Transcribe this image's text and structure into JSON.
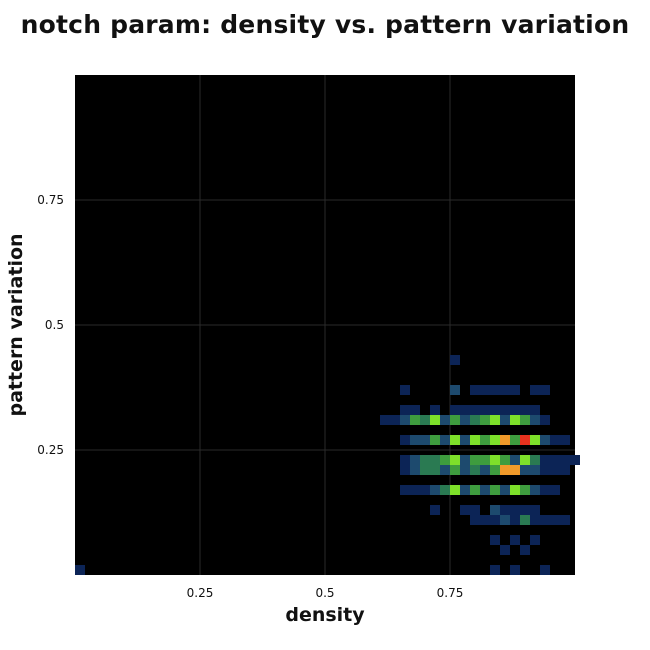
{
  "chart_data": {
    "type": "heatmap",
    "title": "notch param: density vs. pattern variation",
    "xlabel": "density",
    "ylabel": "pattern variation",
    "xlim": [
      0,
      1
    ],
    "ylim": [
      0,
      1
    ],
    "xticks": [
      {
        "value": 0.25,
        "label": "0.25"
      },
      {
        "value": 0.5,
        "label": "0.5"
      },
      {
        "value": 0.75,
        "label": "0.75"
      }
    ],
    "yticks": [
      {
        "value": 0.25,
        "label": "0.25"
      },
      {
        "value": 0.5,
        "label": "0.5"
      },
      {
        "value": 0.75,
        "label": "0.75"
      }
    ],
    "grid": true,
    "background_color": "#000000",
    "grid_color": "#2a2a2a",
    "bin_size": 0.02,
    "color_scale": [
      "#0c2456",
      "#1d4a6e",
      "#2a7a52",
      "#3e9c3e",
      "#7ee02a",
      "#f09a2a",
      "#e8321e"
    ],
    "intensity_max": 6,
    "cells": [
      [
        0.0,
        0.0,
        0
      ],
      [
        0.75,
        0.42,
        0
      ],
      [
        0.65,
        0.36,
        0
      ],
      [
        0.75,
        0.36,
        1
      ],
      [
        0.79,
        0.36,
        0
      ],
      [
        0.81,
        0.36,
        0
      ],
      [
        0.83,
        0.36,
        0
      ],
      [
        0.85,
        0.36,
        0
      ],
      [
        0.87,
        0.36,
        0
      ],
      [
        0.91,
        0.36,
        0
      ],
      [
        0.93,
        0.36,
        0
      ],
      [
        0.65,
        0.32,
        0
      ],
      [
        0.67,
        0.32,
        0
      ],
      [
        0.71,
        0.32,
        0
      ],
      [
        0.75,
        0.32,
        0
      ],
      [
        0.77,
        0.32,
        0
      ],
      [
        0.79,
        0.32,
        0
      ],
      [
        0.81,
        0.32,
        0
      ],
      [
        0.83,
        0.32,
        0
      ],
      [
        0.85,
        0.32,
        0
      ],
      [
        0.87,
        0.32,
        0
      ],
      [
        0.89,
        0.32,
        0
      ],
      [
        0.91,
        0.32,
        0
      ],
      [
        0.61,
        0.3,
        0
      ],
      [
        0.63,
        0.3,
        0
      ],
      [
        0.65,
        0.3,
        1
      ],
      [
        0.67,
        0.3,
        3
      ],
      [
        0.69,
        0.3,
        2
      ],
      [
        0.71,
        0.3,
        4
      ],
      [
        0.73,
        0.3,
        1
      ],
      [
        0.75,
        0.3,
        3
      ],
      [
        0.77,
        0.3,
        1
      ],
      [
        0.79,
        0.3,
        2
      ],
      [
        0.81,
        0.3,
        3
      ],
      [
        0.83,
        0.3,
        4
      ],
      [
        0.85,
        0.3,
        1
      ],
      [
        0.87,
        0.3,
        4
      ],
      [
        0.89,
        0.3,
        3
      ],
      [
        0.91,
        0.3,
        1
      ],
      [
        0.93,
        0.3,
        0
      ],
      [
        0.65,
        0.26,
        0
      ],
      [
        0.67,
        0.26,
        1
      ],
      [
        0.69,
        0.26,
        1
      ],
      [
        0.71,
        0.26,
        3
      ],
      [
        0.73,
        0.26,
        1
      ],
      [
        0.75,
        0.26,
        4
      ],
      [
        0.77,
        0.26,
        1
      ],
      [
        0.79,
        0.26,
        4
      ],
      [
        0.81,
        0.26,
        3
      ],
      [
        0.83,
        0.26,
        4
      ],
      [
        0.85,
        0.26,
        5
      ],
      [
        0.87,
        0.26,
        3
      ],
      [
        0.89,
        0.26,
        6
      ],
      [
        0.91,
        0.26,
        4
      ],
      [
        0.93,
        0.26,
        1
      ],
      [
        0.95,
        0.26,
        0
      ],
      [
        0.97,
        0.26,
        0
      ],
      [
        0.65,
        0.22,
        0
      ],
      [
        0.67,
        0.22,
        1
      ],
      [
        0.69,
        0.22,
        2
      ],
      [
        0.71,
        0.22,
        2
      ],
      [
        0.73,
        0.22,
        3
      ],
      [
        0.75,
        0.22,
        4
      ],
      [
        0.77,
        0.22,
        1
      ],
      [
        0.79,
        0.22,
        3
      ],
      [
        0.81,
        0.22,
        3
      ],
      [
        0.83,
        0.22,
        4
      ],
      [
        0.85,
        0.22,
        3
      ],
      [
        0.87,
        0.22,
        1
      ],
      [
        0.89,
        0.22,
        4
      ],
      [
        0.91,
        0.22,
        2
      ],
      [
        0.93,
        0.22,
        0
      ],
      [
        0.95,
        0.22,
        0
      ],
      [
        0.97,
        0.22,
        0
      ],
      [
        0.99,
        0.22,
        0
      ],
      [
        0.65,
        0.2,
        0
      ],
      [
        0.67,
        0.2,
        1
      ],
      [
        0.69,
        0.2,
        2
      ],
      [
        0.71,
        0.2,
        2
      ],
      [
        0.73,
        0.2,
        1
      ],
      [
        0.75,
        0.2,
        3
      ],
      [
        0.77,
        0.2,
        1
      ],
      [
        0.79,
        0.2,
        2
      ],
      [
        0.81,
        0.2,
        1
      ],
      [
        0.83,
        0.2,
        3
      ],
      [
        0.85,
        0.2,
        5
      ],
      [
        0.87,
        0.2,
        5
      ],
      [
        0.89,
        0.2,
        1
      ],
      [
        0.91,
        0.2,
        1
      ],
      [
        0.93,
        0.2,
        0
      ],
      [
        0.95,
        0.2,
        0
      ],
      [
        0.97,
        0.2,
        0
      ],
      [
        0.65,
        0.16,
        0
      ],
      [
        0.67,
        0.16,
        0
      ],
      [
        0.69,
        0.16,
        0
      ],
      [
        0.71,
        0.16,
        1
      ],
      [
        0.73,
        0.16,
        2
      ],
      [
        0.75,
        0.16,
        4
      ],
      [
        0.77,
        0.16,
        1
      ],
      [
        0.79,
        0.16,
        3
      ],
      [
        0.81,
        0.16,
        1
      ],
      [
        0.83,
        0.16,
        3
      ],
      [
        0.85,
        0.16,
        1
      ],
      [
        0.87,
        0.16,
        4
      ],
      [
        0.89,
        0.16,
        3
      ],
      [
        0.91,
        0.16,
        1
      ],
      [
        0.93,
        0.16,
        0
      ],
      [
        0.95,
        0.16,
        0
      ],
      [
        0.71,
        0.12,
        0
      ],
      [
        0.77,
        0.12,
        0
      ],
      [
        0.79,
        0.12,
        0
      ],
      [
        0.83,
        0.12,
        1
      ],
      [
        0.85,
        0.12,
        0
      ],
      [
        0.87,
        0.12,
        0
      ],
      [
        0.89,
        0.12,
        0
      ],
      [
        0.91,
        0.12,
        0
      ],
      [
        0.79,
        0.1,
        0
      ],
      [
        0.81,
        0.1,
        0
      ],
      [
        0.83,
        0.1,
        0
      ],
      [
        0.85,
        0.1,
        1
      ],
      [
        0.87,
        0.1,
        0
      ],
      [
        0.89,
        0.1,
        2
      ],
      [
        0.91,
        0.1,
        0
      ],
      [
        0.93,
        0.1,
        0
      ],
      [
        0.95,
        0.1,
        0
      ],
      [
        0.97,
        0.1,
        0
      ],
      [
        0.83,
        0.06,
        0
      ],
      [
        0.87,
        0.06,
        0
      ],
      [
        0.91,
        0.06,
        0
      ],
      [
        0.85,
        0.04,
        0
      ],
      [
        0.89,
        0.04,
        0
      ],
      [
        0.83,
        0.0,
        0
      ],
      [
        0.87,
        0.0,
        0
      ],
      [
        0.93,
        0.0,
        0
      ]
    ]
  }
}
